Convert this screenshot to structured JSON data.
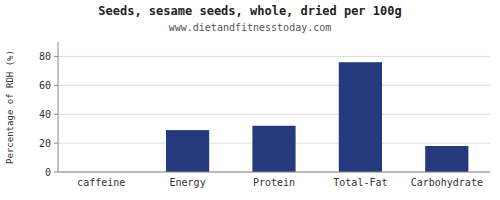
{
  "chart_data": {
    "type": "bar",
    "title": "Seeds, sesame seeds, whole, dried per 100g",
    "subtitle": "www.dietandfitnesstoday.com",
    "categories": [
      "caffeine",
      "Energy",
      "Protein",
      "Total-Fat",
      "Carbohydrate"
    ],
    "values": [
      0,
      29,
      32,
      76,
      18
    ],
    "color": "#253a7e",
    "ylabel": "Percentage of RDH (%)",
    "ylim": [
      0,
      90
    ],
    "yticks": [
      0,
      20,
      40,
      60,
      80
    ],
    "grid": true
  }
}
